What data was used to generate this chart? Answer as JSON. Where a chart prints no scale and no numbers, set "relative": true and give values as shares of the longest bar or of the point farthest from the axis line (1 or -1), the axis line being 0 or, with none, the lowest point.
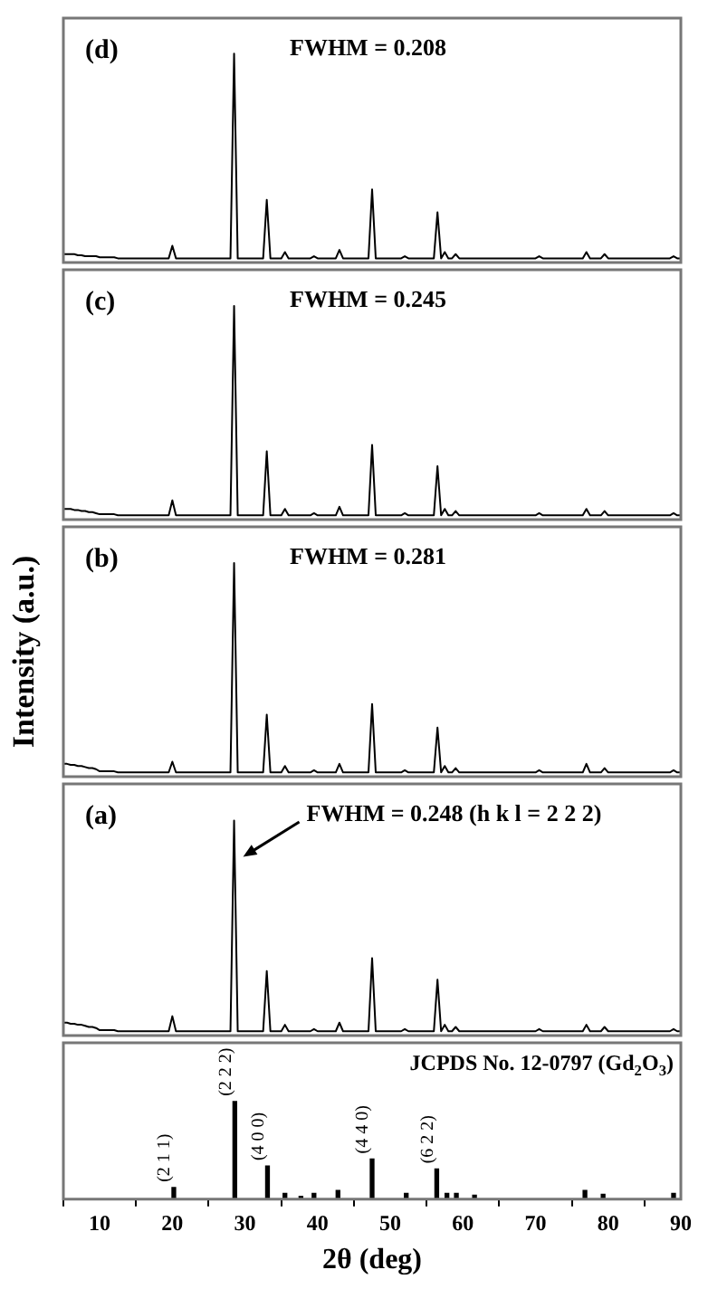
{
  "chart_data": [
    {
      "type": "line",
      "title": "(d)",
      "annotations": [
        "FWHM = 0.208"
      ],
      "relative": true,
      "tick_labels": false,
      "categories": [
        null,
        null,
        null,
        null,
        null,
        null,
        null,
        null,
        null,
        null,
        null,
        null,
        null,
        null,
        null,
        null,
        null,
        null,
        null,
        null,
        null,
        null,
        null,
        null,
        null,
        null,
        null,
        null,
        null,
        null,
        null,
        null,
        null,
        null,
        null,
        null,
        null,
        null,
        null,
        null,
        null,
        null,
        null,
        null,
        null,
        null,
        null,
        null,
        null,
        null,
        null,
        null,
        null,
        null,
        null,
        null,
        null,
        null,
        null,
        null,
        null,
        null,
        null,
        null,
        null,
        null,
        null,
        null,
        null,
        null,
        null,
        null,
        null,
        null,
        null,
        null,
        null,
        null,
        null,
        null,
        null,
        null,
        null,
        null,
        null,
        null,
        null,
        null,
        null,
        null,
        null,
        null,
        null,
        null,
        null,
        null,
        null,
        null,
        null,
        null,
        null,
        null,
        null,
        null,
        null,
        null,
        null,
        null,
        null,
        null,
        null,
        null,
        null,
        null,
        null,
        null,
        null,
        null,
        null,
        null,
        null,
        null,
        null,
        null,
        null,
        null,
        null,
        null,
        null,
        null,
        null,
        null,
        null,
        null,
        null,
        null,
        null,
        null,
        null,
        null,
        null,
        null,
        null,
        null,
        null,
        null,
        null,
        null,
        null,
        null,
        null,
        null,
        null,
        null,
        null,
        null,
        null,
        null,
        null,
        null,
        null,
        null,
        null,
        null,
        null,
        null,
        null,
        null,
        null,
        null,
        null
      ],
      "series": [
        {
          "color": "#000000",
          "values": [
            0.04,
            0.04,
            0.04,
            0.04,
            0.035,
            0.035,
            0.03,
            0.03,
            0.03,
            0.03,
            0.025,
            0.025,
            0.025,
            0.025,
            0.025,
            0.02,
            0.02,
            0.02,
            0.02,
            0.02,
            0.02,
            0.02,
            0.02,
            0.02,
            0.02,
            0.02,
            0.02,
            0.02,
            0.02,
            0.02,
            0.08,
            0.02,
            0.02,
            0.02,
            0.02,
            0.02,
            0.02,
            0.02,
            0.02,
            0.02,
            0.02,
            0.02,
            0.02,
            0.02,
            0.02,
            0.02,
            0.02,
            1,
            0.02,
            0.02,
            0.02,
            0.02,
            0.02,
            0.02,
            0.02,
            0.02,
            0.3,
            0.02,
            0.02,
            0.02,
            0.02,
            0.05,
            0.02,
            0.02,
            0.02,
            0.02,
            0.02,
            0.02,
            0.02,
            0.03,
            0.02,
            0.02,
            0.02,
            0.02,
            0.02,
            0.02,
            0.06,
            0.02,
            0.02,
            0.02,
            0.02,
            0.02,
            0.02,
            0.02,
            0.02,
            0.35,
            0.02,
            0.02,
            0.02,
            0.02,
            0.02,
            0.02,
            0.02,
            0.02,
            0.03,
            0.02,
            0.02,
            0.02,
            0.02,
            0.02,
            0.02,
            0.02,
            0.02,
            0.24,
            0.02,
            0.05,
            0.02,
            0.02,
            0.04,
            0.02,
            0.02,
            0.02,
            0.02,
            0.02,
            0.02,
            0.02,
            0.02,
            0.02,
            0.02,
            0.02,
            0.02,
            0.02,
            0.02,
            0.02,
            0.02,
            0.02,
            0.02,
            0.02,
            0.02,
            0.02,
            0.02,
            0.03,
            0.02,
            0.02,
            0.02,
            0.02,
            0.02,
            0.02,
            0.02,
            0.02,
            0.02,
            0.02,
            0.02,
            0.02,
            0.05,
            0.02,
            0.02,
            0.02,
            0.02,
            0.04,
            0.02,
            0.02,
            0.02,
            0.02,
            0.02,
            0.02,
            0.02,
            0.02,
            0.02,
            0.02,
            0.02,
            0.02,
            0.02,
            0.02,
            0.02,
            0.02,
            0.02,
            0.02,
            0.03,
            0.02,
            0.02
          ]
        }
      ]
    },
    {
      "type": "line",
      "title": "(c)",
      "annotations": [
        "FWHM = 0.245"
      ],
      "relative": true,
      "tick_labels": false,
      "categories": [
        null,
        null,
        null,
        null,
        null,
        null,
        null,
        null,
        null,
        null,
        null,
        null,
        null,
        null,
        null,
        null,
        null,
        null,
        null,
        null,
        null,
        null,
        null,
        null,
        null,
        null,
        null,
        null,
        null,
        null,
        null,
        null,
        null,
        null,
        null,
        null,
        null,
        null,
        null,
        null,
        null,
        null,
        null,
        null,
        null,
        null,
        null,
        null,
        null,
        null,
        null,
        null,
        null,
        null,
        null,
        null,
        null,
        null,
        null,
        null,
        null,
        null,
        null,
        null,
        null,
        null,
        null,
        null,
        null,
        null,
        null,
        null,
        null,
        null,
        null,
        null,
        null,
        null,
        null,
        null,
        null,
        null,
        null,
        null,
        null,
        null,
        null,
        null,
        null,
        null,
        null,
        null,
        null,
        null,
        null,
        null,
        null,
        null,
        null,
        null,
        null,
        null,
        null,
        null,
        null,
        null,
        null,
        null,
        null,
        null,
        null,
        null,
        null,
        null,
        null,
        null,
        null,
        null,
        null,
        null,
        null,
        null,
        null,
        null,
        null,
        null,
        null,
        null,
        null,
        null,
        null,
        null,
        null,
        null,
        null,
        null,
        null,
        null,
        null,
        null,
        null,
        null,
        null,
        null,
        null,
        null,
        null,
        null,
        null,
        null,
        null,
        null,
        null,
        null,
        null,
        null,
        null,
        null,
        null,
        null,
        null,
        null,
        null,
        null,
        null,
        null,
        null,
        null,
        null,
        null,
        null
      ],
      "series": [
        {
          "color": "#000000",
          "values": [
            0.05,
            0.05,
            0.05,
            0.045,
            0.045,
            0.04,
            0.04,
            0.035,
            0.035,
            0.03,
            0.025,
            0.025,
            0.025,
            0.025,
            0.025,
            0.02,
            0.02,
            0.02,
            0.02,
            0.02,
            0.02,
            0.02,
            0.02,
            0.02,
            0.02,
            0.02,
            0.02,
            0.02,
            0.02,
            0.02,
            0.09,
            0.02,
            0.02,
            0.02,
            0.02,
            0.02,
            0.02,
            0.02,
            0.02,
            0.02,
            0.02,
            0.02,
            0.02,
            0.02,
            0.02,
            0.02,
            0.02,
            1,
            0.02,
            0.02,
            0.02,
            0.02,
            0.02,
            0.02,
            0.02,
            0.02,
            0.32,
            0.02,
            0.02,
            0.02,
            0.02,
            0.05,
            0.02,
            0.02,
            0.02,
            0.02,
            0.02,
            0.02,
            0.02,
            0.03,
            0.02,
            0.02,
            0.02,
            0.02,
            0.02,
            0.02,
            0.06,
            0.02,
            0.02,
            0.02,
            0.02,
            0.02,
            0.02,
            0.02,
            0.02,
            0.35,
            0.02,
            0.02,
            0.02,
            0.02,
            0.02,
            0.02,
            0.02,
            0.02,
            0.03,
            0.02,
            0.02,
            0.02,
            0.02,
            0.02,
            0.02,
            0.02,
            0.02,
            0.25,
            0.02,
            0.05,
            0.02,
            0.02,
            0.04,
            0.02,
            0.02,
            0.02,
            0.02,
            0.02,
            0.02,
            0.02,
            0.02,
            0.02,
            0.02,
            0.02,
            0.02,
            0.02,
            0.02,
            0.02,
            0.02,
            0.02,
            0.02,
            0.02,
            0.02,
            0.02,
            0.02,
            0.03,
            0.02,
            0.02,
            0.02,
            0.02,
            0.02,
            0.02,
            0.02,
            0.02,
            0.02,
            0.02,
            0.02,
            0.02,
            0.05,
            0.02,
            0.02,
            0.02,
            0.02,
            0.04,
            0.02,
            0.02,
            0.02,
            0.02,
            0.02,
            0.02,
            0.02,
            0.02,
            0.02,
            0.02,
            0.02,
            0.02,
            0.02,
            0.02,
            0.02,
            0.02,
            0.02,
            0.02,
            0.03,
            0.02,
            0.02
          ]
        }
      ]
    },
    {
      "type": "line",
      "title": "(b)",
      "annotations": [
        "FWHM = 0.281"
      ],
      "ylabel": "Intensity (a.u.)",
      "relative": true,
      "tick_labels": false,
      "categories": [
        null,
        null,
        null,
        null,
        null,
        null,
        null,
        null,
        null,
        null,
        null,
        null,
        null,
        null,
        null,
        null,
        null,
        null,
        null,
        null,
        null,
        null,
        null,
        null,
        null,
        null,
        null,
        null,
        null,
        null,
        null,
        null,
        null,
        null,
        null,
        null,
        null,
        null,
        null,
        null,
        null,
        null,
        null,
        null,
        null,
        null,
        null,
        null,
        null,
        null,
        null,
        null,
        null,
        null,
        null,
        null,
        null,
        null,
        null,
        null,
        null,
        null,
        null,
        null,
        null,
        null,
        null,
        null,
        null,
        null,
        null,
        null,
        null,
        null,
        null,
        null,
        null,
        null,
        null,
        null,
        null,
        null,
        null,
        null,
        null,
        null,
        null,
        null,
        null,
        null,
        null,
        null,
        null,
        null,
        null,
        null,
        null,
        null,
        null,
        null,
        null,
        null,
        null,
        null,
        null,
        null,
        null,
        null,
        null,
        null,
        null,
        null,
        null,
        null,
        null,
        null,
        null,
        null,
        null,
        null,
        null,
        null,
        null,
        null,
        null,
        null,
        null,
        null,
        null,
        null,
        null,
        null,
        null,
        null,
        null,
        null,
        null,
        null,
        null,
        null,
        null,
        null,
        null,
        null,
        null,
        null,
        null,
        null,
        null,
        null,
        null,
        null,
        null,
        null,
        null,
        null,
        null,
        null,
        null,
        null,
        null,
        null,
        null,
        null,
        null,
        null,
        null,
        null,
        null,
        null,
        null
      ],
      "series": [
        {
          "color": "#000000",
          "values": [
            0.06,
            0.06,
            0.055,
            0.055,
            0.05,
            0.05,
            0.045,
            0.04,
            0.04,
            0.035,
            0.025,
            0.025,
            0.025,
            0.025,
            0.025,
            0.02,
            0.02,
            0.02,
            0.02,
            0.02,
            0.02,
            0.02,
            0.02,
            0.02,
            0.02,
            0.02,
            0.02,
            0.02,
            0.02,
            0.02,
            0.07,
            0.02,
            0.02,
            0.02,
            0.02,
            0.02,
            0.02,
            0.02,
            0.02,
            0.02,
            0.02,
            0.02,
            0.02,
            0.02,
            0.02,
            0.02,
            0.02,
            1,
            0.02,
            0.02,
            0.02,
            0.02,
            0.02,
            0.02,
            0.02,
            0.02,
            0.29,
            0.02,
            0.02,
            0.02,
            0.02,
            0.05,
            0.02,
            0.02,
            0.02,
            0.02,
            0.02,
            0.02,
            0.02,
            0.03,
            0.02,
            0.02,
            0.02,
            0.02,
            0.02,
            0.02,
            0.06,
            0.02,
            0.02,
            0.02,
            0.02,
            0.02,
            0.02,
            0.02,
            0.02,
            0.34,
            0.02,
            0.02,
            0.02,
            0.02,
            0.02,
            0.02,
            0.02,
            0.02,
            0.03,
            0.02,
            0.02,
            0.02,
            0.02,
            0.02,
            0.02,
            0.02,
            0.02,
            0.23,
            0.02,
            0.05,
            0.02,
            0.02,
            0.04,
            0.02,
            0.02,
            0.02,
            0.02,
            0.02,
            0.02,
            0.02,
            0.02,
            0.02,
            0.02,
            0.02,
            0.02,
            0.02,
            0.02,
            0.02,
            0.02,
            0.02,
            0.02,
            0.02,
            0.02,
            0.02,
            0.02,
            0.03,
            0.02,
            0.02,
            0.02,
            0.02,
            0.02,
            0.02,
            0.02,
            0.02,
            0.02,
            0.02,
            0.02,
            0.02,
            0.06,
            0.02,
            0.02,
            0.02,
            0.02,
            0.04,
            0.02,
            0.02,
            0.02,
            0.02,
            0.02,
            0.02,
            0.02,
            0.02,
            0.02,
            0.02,
            0.02,
            0.02,
            0.02,
            0.02,
            0.02,
            0.02,
            0.02,
            0.02,
            0.03,
            0.02,
            0.02
          ]
        }
      ]
    },
    {
      "type": "line",
      "title": "(a)",
      "annotations": [
        "FWHM = 0.248 (h k l = 2 2 2)"
      ],
      "relative": true,
      "tick_labels": false,
      "categories": [
        null,
        null,
        null,
        null,
        null,
        null,
        null,
        null,
        null,
        null,
        null,
        null,
        null,
        null,
        null,
        null,
        null,
        null,
        null,
        null,
        null,
        null,
        null,
        null,
        null,
        null,
        null,
        null,
        null,
        null,
        null,
        null,
        null,
        null,
        null,
        null,
        null,
        null,
        null,
        null,
        null,
        null,
        null,
        null,
        null,
        null,
        null,
        null,
        null,
        null,
        null,
        null,
        null,
        null,
        null,
        null,
        null,
        null,
        null,
        null,
        null,
        null,
        null,
        null,
        null,
        null,
        null,
        null,
        null,
        null,
        null,
        null,
        null,
        null,
        null,
        null,
        null,
        null,
        null,
        null,
        null,
        null,
        null,
        null,
        null,
        null,
        null,
        null,
        null,
        null,
        null,
        null,
        null,
        null,
        null,
        null,
        null,
        null,
        null,
        null,
        null,
        null,
        null,
        null,
        null,
        null,
        null,
        null,
        null,
        null,
        null,
        null,
        null,
        null,
        null,
        null,
        null,
        null,
        null,
        null,
        null,
        null,
        null,
        null,
        null,
        null,
        null,
        null,
        null,
        null,
        null,
        null,
        null,
        null,
        null,
        null,
        null,
        null,
        null,
        null,
        null,
        null,
        null,
        null,
        null,
        null,
        null,
        null,
        null,
        null,
        null,
        null,
        null,
        null,
        null,
        null,
        null,
        null,
        null,
        null,
        null,
        null,
        null,
        null,
        null,
        null,
        null,
        null,
        null,
        null,
        null
      ],
      "series": [
        {
          "color": "#000000",
          "values": [
            0.06,
            0.06,
            0.055,
            0.055,
            0.05,
            0.05,
            0.045,
            0.04,
            0.04,
            0.035,
            0.025,
            0.025,
            0.025,
            0.025,
            0.025,
            0.02,
            0.02,
            0.02,
            0.02,
            0.02,
            0.02,
            0.02,
            0.02,
            0.02,
            0.02,
            0.02,
            0.02,
            0.02,
            0.02,
            0.02,
            0.09,
            0.02,
            0.02,
            0.02,
            0.02,
            0.02,
            0.02,
            0.02,
            0.02,
            0.02,
            0.02,
            0.02,
            0.02,
            0.02,
            0.02,
            0.02,
            0.02,
            1,
            0.02,
            0.02,
            0.02,
            0.02,
            0.02,
            0.02,
            0.02,
            0.02,
            0.3,
            0.02,
            0.02,
            0.02,
            0.02,
            0.05,
            0.02,
            0.02,
            0.02,
            0.02,
            0.02,
            0.02,
            0.02,
            0.03,
            0.02,
            0.02,
            0.02,
            0.02,
            0.02,
            0.02,
            0.06,
            0.02,
            0.02,
            0.02,
            0.02,
            0.02,
            0.02,
            0.02,
            0.02,
            0.36,
            0.02,
            0.02,
            0.02,
            0.02,
            0.02,
            0.02,
            0.02,
            0.02,
            0.03,
            0.02,
            0.02,
            0.02,
            0.02,
            0.02,
            0.02,
            0.02,
            0.02,
            0.26,
            0.02,
            0.05,
            0.02,
            0.02,
            0.04,
            0.02,
            0.02,
            0.02,
            0.02,
            0.02,
            0.02,
            0.02,
            0.02,
            0.02,
            0.02,
            0.02,
            0.02,
            0.02,
            0.02,
            0.02,
            0.02,
            0.02,
            0.02,
            0.02,
            0.02,
            0.02,
            0.02,
            0.03,
            0.02,
            0.02,
            0.02,
            0.02,
            0.02,
            0.02,
            0.02,
            0.02,
            0.02,
            0.02,
            0.02,
            0.02,
            0.05,
            0.02,
            0.02,
            0.02,
            0.02,
            0.04,
            0.02,
            0.02,
            0.02,
            0.02,
            0.02,
            0.02,
            0.02,
            0.02,
            0.02,
            0.02,
            0.02,
            0.02,
            0.02,
            0.02,
            0.02,
            0.02,
            0.02,
            0.02,
            0.03,
            0.02,
            0.02
          ]
        }
      ]
    },
    {
      "type": "bar",
      "xlabel": "2θ (deg)",
      "relative": true,
      "xlim": [
        5,
        90
      ],
      "xticks": [
        10,
        20,
        30,
        40,
        50,
        60,
        70,
        80,
        90
      ],
      "tick_labels": "x",
      "annotations": [
        "JCPDS No. 12-0797 (Gd$_{2}$O$_{3}$)",
        {
          "text": "(2 1 1)",
          "x": 20.2,
          "y": 0.12
        },
        {
          "text": "(2 2 2)",
          "x": 28.6,
          "y": 1
        },
        {
          "text": "(4 0 0)",
          "x": 33.1,
          "y": 0.34
        },
        {
          "text": "(4 4 0)",
          "x": 47.5,
          "y": 0.41
        },
        {
          "text": "(6 2 2)",
          "x": 56.4,
          "y": 0.31
        }
      ],
      "x": [
        20.2,
        28.6,
        33.1,
        35.5,
        37.7,
        39.5,
        42.8,
        47.5,
        52.2,
        56.4,
        57.8,
        59.1,
        61.6,
        76.8,
        79.3,
        89.0
      ],
      "series": [
        {
          "color": "#000000",
          "values": [
            0.12,
            1,
            0.34,
            0.06,
            0.03,
            0.06,
            0.09,
            0.41,
            0.06,
            0.31,
            0.06,
            0.06,
            0.04,
            0.09,
            0.05,
            0.06
          ]
        }
      ]
    }
  ]
}
